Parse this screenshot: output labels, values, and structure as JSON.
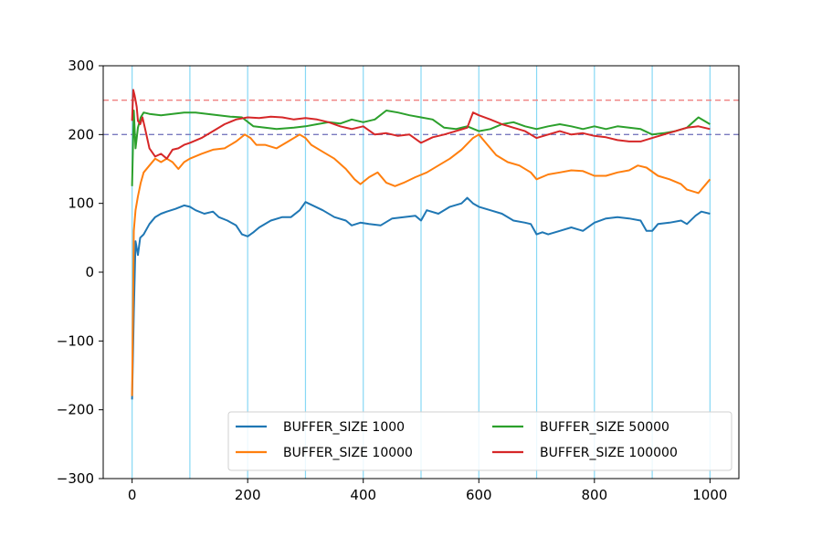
{
  "chart_data": {
    "type": "line",
    "title": "",
    "xlabel": "",
    "ylabel": "",
    "xlim": [
      -50,
      1050
    ],
    "ylim": [
      -300,
      300
    ],
    "xticks": [
      0,
      200,
      400,
      600,
      800,
      1000
    ],
    "yticks": [
      -300,
      -200,
      -100,
      0,
      100,
      200,
      300
    ],
    "xtick_labels": [
      "0",
      "200",
      "400",
      "600",
      "800",
      "1000"
    ],
    "ytick_labels": [
      "−300",
      "−200",
      "−100",
      "0",
      "100",
      "200",
      "300"
    ],
    "vertical_lines": [
      0,
      100,
      200,
      300,
      400,
      500,
      600,
      700,
      800,
      900,
      1000
    ],
    "vertical_line_color": "#87d8f5",
    "horizontal_lines": [
      {
        "y": 250,
        "color": "#f08080"
      },
      {
        "y": 200,
        "color": "#7a7abf"
      }
    ],
    "legend_position": "lower-right",
    "series": [
      {
        "name": "BUFFER_SIZE 1000",
        "color": "#1f77b4",
        "x": [
          0,
          3,
          6,
          10,
          14,
          20,
          30,
          40,
          50,
          60,
          75,
          90,
          100,
          110,
          125,
          140,
          150,
          165,
          180,
          190,
          200,
          210,
          220,
          240,
          260,
          275,
          290,
          300,
          310,
          330,
          350,
          370,
          380,
          395,
          410,
          430,
          450,
          470,
          490,
          500,
          510,
          530,
          550,
          570,
          580,
          590,
          600,
          620,
          640,
          660,
          680,
          690,
          700,
          710,
          720,
          740,
          760,
          780,
          800,
          820,
          840,
          860,
          880,
          890,
          900,
          910,
          930,
          950,
          960,
          975,
          985,
          1000
        ],
        "y": [
          -185,
          -60,
          45,
          25,
          50,
          55,
          70,
          80,
          85,
          88,
          92,
          97,
          95,
          90,
          85,
          88,
          80,
          75,
          68,
          55,
          52,
          58,
          65,
          75,
          80,
          80,
          90,
          102,
          98,
          90,
          80,
          75,
          68,
          72,
          70,
          68,
          78,
          80,
          82,
          75,
          90,
          85,
          95,
          100,
          108,
          100,
          95,
          90,
          85,
          75,
          72,
          70,
          55,
          58,
          55,
          60,
          65,
          60,
          72,
          78,
          80,
          78,
          75,
          60,
          60,
          70,
          72,
          75,
          70,
          82,
          88,
          85
        ]
      },
      {
        "name": "BUFFER_SIZE 10000",
        "color": "#ff7f0e",
        "x": [
          0,
          3,
          6,
          10,
          15,
          20,
          30,
          40,
          50,
          60,
          70,
          80,
          90,
          100,
          120,
          140,
          160,
          180,
          195,
          205,
          215,
          230,
          250,
          270,
          290,
          300,
          310,
          330,
          350,
          370,
          385,
          395,
          410,
          425,
          440,
          455,
          470,
          490,
          510,
          530,
          550,
          570,
          590,
          600,
          610,
          630,
          650,
          670,
          690,
          700,
          720,
          740,
          760,
          780,
          800,
          820,
          840,
          860,
          875,
          890,
          910,
          930,
          950,
          960,
          980,
          1000
        ],
        "y": [
          -180,
          60,
          90,
          110,
          130,
          145,
          155,
          165,
          160,
          165,
          160,
          150,
          160,
          165,
          172,
          178,
          180,
          190,
          200,
          195,
          185,
          185,
          180,
          190,
          200,
          195,
          185,
          175,
          165,
          150,
          135,
          128,
          138,
          145,
          130,
          125,
          130,
          138,
          145,
          155,
          165,
          178,
          195,
          200,
          190,
          170,
          160,
          155,
          145,
          135,
          142,
          145,
          148,
          147,
          140,
          140,
          145,
          148,
          155,
          152,
          140,
          135,
          128,
          120,
          115,
          135
        ]
      },
      {
        "name": "BUFFER_SIZE 50000",
        "color": "#2ca02c",
        "x": [
          0,
          3,
          6,
          10,
          15,
          20,
          30,
          50,
          70,
          90,
          110,
          130,
          150,
          170,
          190,
          210,
          230,
          250,
          280,
          300,
          320,
          340,
          360,
          380,
          400,
          420,
          440,
          460,
          480,
          500,
          520,
          540,
          560,
          580,
          600,
          620,
          640,
          660,
          680,
          700,
          720,
          740,
          760,
          780,
          800,
          820,
          840,
          860,
          880,
          900,
          920,
          940,
          960,
          980,
          1000
        ],
        "y": [
          125,
          235,
          180,
          210,
          225,
          232,
          230,
          228,
          230,
          232,
          232,
          230,
          228,
          226,
          225,
          212,
          210,
          208,
          210,
          212,
          215,
          218,
          216,
          222,
          218,
          222,
          235,
          232,
          228,
          225,
          222,
          210,
          208,
          212,
          205,
          208,
          215,
          218,
          212,
          208,
          212,
          215,
          212,
          208,
          212,
          208,
          212,
          210,
          208,
          200,
          202,
          205,
          210,
          225,
          215
        ]
      },
      {
        "name": "BUFFER_SIZE 100000",
        "color": "#d62728",
        "x": [
          0,
          2,
          4,
          6,
          8,
          10,
          14,
          18,
          22,
          30,
          40,
          50,
          60,
          70,
          80,
          90,
          100,
          120,
          140,
          160,
          180,
          200,
          220,
          240,
          260,
          280,
          300,
          320,
          340,
          360,
          380,
          400,
          420,
          440,
          460,
          480,
          500,
          520,
          540,
          560,
          580,
          590,
          600,
          620,
          640,
          660,
          680,
          700,
          720,
          740,
          760,
          780,
          800,
          820,
          840,
          860,
          880,
          900,
          920,
          940,
          960,
          980,
          1000
        ],
        "y": [
          220,
          265,
          258,
          250,
          240,
          220,
          215,
          225,
          210,
          180,
          168,
          172,
          165,
          178,
          180,
          185,
          188,
          195,
          205,
          215,
          222,
          225,
          224,
          226,
          225,
          222,
          224,
          222,
          218,
          212,
          208,
          212,
          200,
          202,
          198,
          200,
          188,
          196,
          200,
          205,
          210,
          232,
          228,
          222,
          215,
          210,
          205,
          195,
          200,
          205,
          200,
          202,
          198,
          196,
          192,
          190,
          190,
          195,
          200,
          205,
          210,
          212,
          208
        ]
      }
    ]
  }
}
